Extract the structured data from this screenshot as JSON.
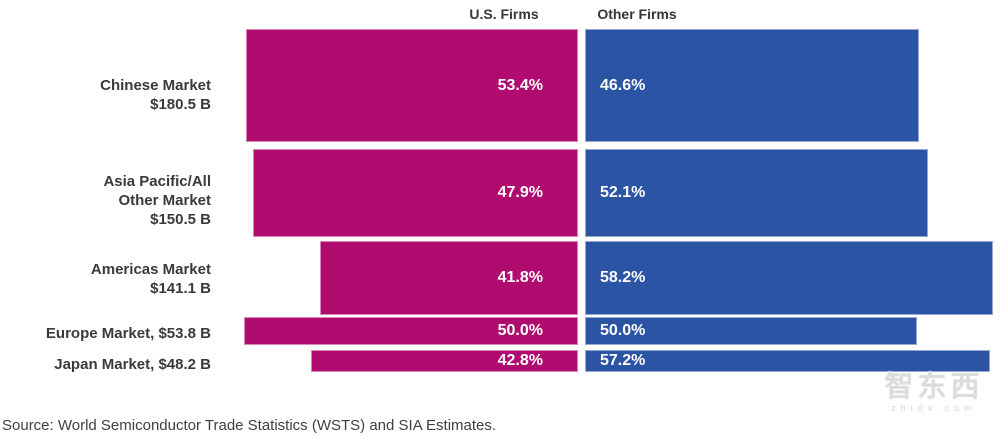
{
  "chart_data": {
    "type": "bar",
    "subtype": "diverging-horizontal",
    "title": "",
    "column_headers": [
      "U.S. Firms",
      "Other Firms"
    ],
    "categories": [
      "Chinese Market $180.5 B",
      "Asia Pacific/All Other Market $150.5 B",
      "Americas Market $141.1 B",
      "Europe Market, $53.8 B",
      "Japan Market, $48.2 B"
    ],
    "market_size_billion_usd": [
      180.5,
      150.5,
      141.1,
      53.8,
      48.2
    ],
    "series": [
      {
        "name": "U.S. Firms",
        "color": "#b00b6e",
        "values": [
          53.4,
          47.9,
          41.8,
          50.0,
          42.8
        ]
      },
      {
        "name": "Other Firms",
        "color": "#2b54a5",
        "values": [
          46.6,
          52.1,
          58.2,
          50.0,
          57.2
        ]
      }
    ],
    "unit": "percent",
    "grid": false,
    "legend_position": "top",
    "rows": [
      {
        "label": "Chinese Market\n$180.5 B",
        "us_label": "53.4%",
        "other_label": "46.6%",
        "layout": {
          "top": 29,
          "height": 113,
          "us_w": 332,
          "other_w": 334,
          "label_dy": 9
        }
      },
      {
        "label": "Asia Pacific/All\nOther Market\n$150.5 B",
        "us_label": "47.9%",
        "other_label": "52.1%",
        "layout": {
          "top": 149,
          "height": 88,
          "us_w": 325,
          "other_w": 343,
          "label_dy": 7
        }
      },
      {
        "label": "Americas Market\n$141.1 B",
        "us_label": "41.8%",
        "other_label": "58.2%",
        "layout": {
          "top": 241,
          "height": 74,
          "us_w": 258,
          "other_w": 408,
          "label_dy": 1
        }
      },
      {
        "label": "Europe Market, $53.8 B",
        "us_label": "50.0%",
        "other_label": "50.0%",
        "layout": {
          "top": 317,
          "height": 28,
          "us_w": 334,
          "other_w": 332,
          "label_dy": 2
        }
      },
      {
        "label": "Japan Market, $48.2 B",
        "us_label": "42.8%",
        "other_label": "57.2%",
        "layout": {
          "top": 350,
          "height": 22,
          "us_w": 267,
          "other_w": 405,
          "label_dy": 3
        }
      }
    ]
  },
  "source_note": "Source: World Semiconductor Trade Statistics (WSTS) and SIA Estimates.",
  "watermark": {
    "logo_text": "智东西",
    "site_text": "zhidx.com"
  },
  "colors": {
    "us_bar": "#b00b6e",
    "other_bar": "#2b54a5",
    "label_text": "#3a3a3a",
    "pct_text": "#ffffff",
    "watermark": "#dcdcdc"
  },
  "layout_constants": {
    "us_bar_right_edge": 578,
    "other_bar_left_edge": 585
  }
}
